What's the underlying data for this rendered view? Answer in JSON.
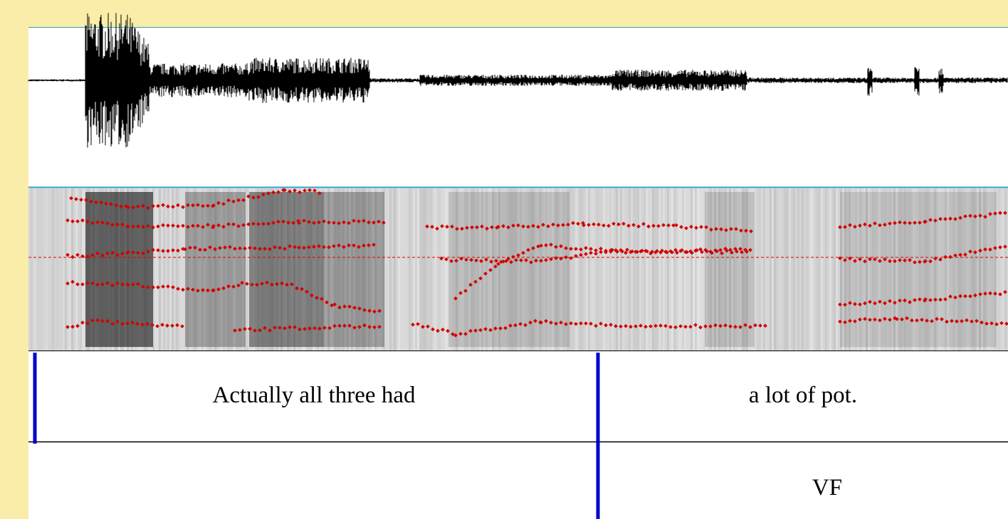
{
  "tiers": [
    {
      "intervals": [
        "Actually all three had",
        "a lot of pot."
      ]
    },
    {
      "intervals": [
        "VF"
      ]
    }
  ]
}
